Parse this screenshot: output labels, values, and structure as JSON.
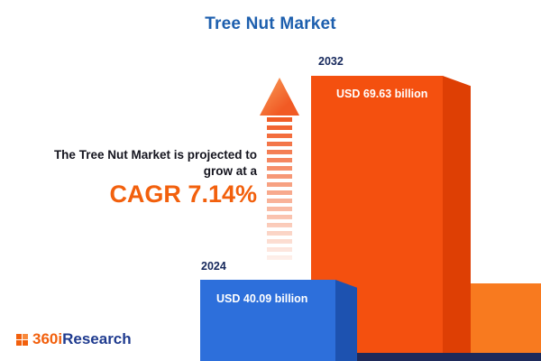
{
  "title": "Tree Nut Market",
  "subtitle": {
    "line1": "The Tree Nut Market is projected to",
    "line2": "grow at a",
    "cagr_label": "CAGR 7.14%"
  },
  "logo": {
    "prefix": "360i",
    "suffix": "Research"
  },
  "colors": {
    "title_blue": "#1D5FAE",
    "bar_2032_orange": "#F4500F",
    "bar_2032_side_orange": "#DE3F04",
    "bar_2032_base_orange": "#F87A1F",
    "bar_2024_blue": "#2D6FDB",
    "bar_2024_side_blue": "#1D52B0",
    "baseline_navy": "#1E2A5A",
    "accent_orange": "#F2600D",
    "year_label_navy": "#16285C"
  },
  "chart_data": {
    "type": "bar",
    "title": "Tree Nut Market",
    "categories": [
      "2024",
      "2032"
    ],
    "values": [
      40.09,
      69.63
    ],
    "value_labels": [
      "USD 40.09 billion",
      "USD 69.63 billion"
    ],
    "unit": "USD billion",
    "cagr_percent": 7.14,
    "series_colors": [
      "#2D6FDB",
      "#F4500F"
    ],
    "legend": "none",
    "grid": false
  }
}
